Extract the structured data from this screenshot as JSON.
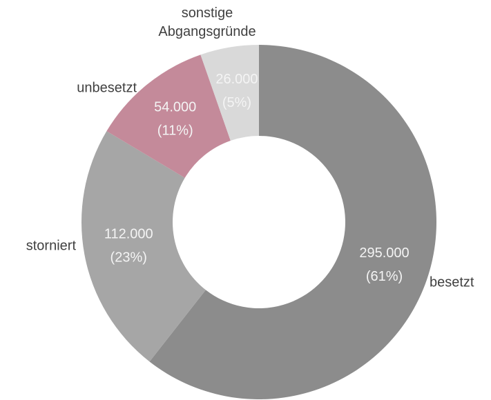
{
  "chart_data": {
    "type": "donut",
    "categories": [
      "besetzt",
      "storniert",
      "unbesetzt",
      "sonstige Abgangsgründe"
    ],
    "values": [
      295000,
      112000,
      54000,
      26000
    ],
    "value_labels": [
      "295.000",
      "112.000",
      "54.000",
      "26.000"
    ],
    "percent_labels": [
      "(61%)",
      "(23%)",
      "(11%)",
      "(5%)"
    ],
    "colors": [
      "#8c8c8c",
      "#a6a6a6",
      "#c48a9a",
      "#d9d9d9"
    ]
  }
}
